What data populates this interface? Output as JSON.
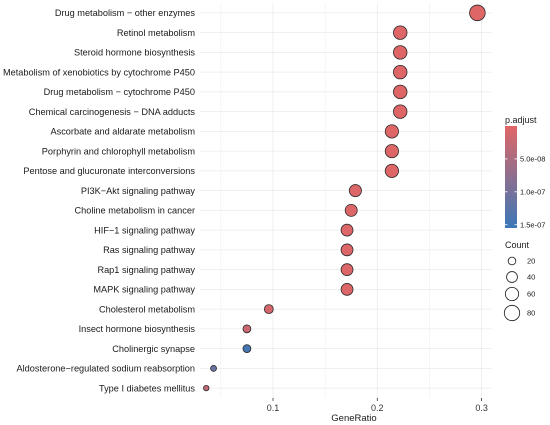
{
  "chart_data": {
    "type": "scatter",
    "title": "",
    "xlabel": "GeneRatio",
    "ylabel": "",
    "xlim": [
      0.03,
      0.31
    ],
    "x_ticks": [
      {
        "value": 0.1,
        "label": "0.1"
      },
      {
        "value": 0.2,
        "label": "0.2"
      },
      {
        "value": 0.3,
        "label": "0.3"
      }
    ],
    "grid": true,
    "legend": "right",
    "categories": [
      "Drug metabolism − other enzymes",
      "Retinol metabolism",
      "Steroid hormone biosynthesis",
      "Metabolism of xenobiotics by cytochrome P450",
      "Drug metabolism − cytochrome P450",
      "Chemical carcinogenesis − DNA adducts",
      "Ascorbate and aldarate metabolism",
      "Porphyrin and chlorophyll metabolism",
      "Pentose and glucuronate interconversions",
      "PI3K−Akt signaling pathway",
      "Choline metabolism in cancer",
      "HIF−1 signaling pathway",
      "Ras signaling pathway",
      "Rap1 signaling pathway",
      "MAPK signaling pathway",
      "Cholesterol metabolism",
      "Insect hormone biosynthesis",
      "Cholinergic synapse",
      "Aldosterone−regulated sodium reabsorption",
      "Type I diabetes mellitus"
    ],
    "points": [
      {
        "gene_ratio": 0.296,
        "count": 83,
        "p_adjust": 1e-09
      },
      {
        "gene_ratio": 0.222,
        "count": 62,
        "p_adjust": 1e-09
      },
      {
        "gene_ratio": 0.222,
        "count": 62,
        "p_adjust": 1e-09
      },
      {
        "gene_ratio": 0.222,
        "count": 62,
        "p_adjust": 1e-09
      },
      {
        "gene_ratio": 0.222,
        "count": 62,
        "p_adjust": 1e-09
      },
      {
        "gene_ratio": 0.222,
        "count": 62,
        "p_adjust": 1e-09
      },
      {
        "gene_ratio": 0.214,
        "count": 60,
        "p_adjust": 2e-09
      },
      {
        "gene_ratio": 0.214,
        "count": 60,
        "p_adjust": 2e-09
      },
      {
        "gene_ratio": 0.214,
        "count": 60,
        "p_adjust": 2e-09
      },
      {
        "gene_ratio": 0.179,
        "count": 50,
        "p_adjust": 3e-09
      },
      {
        "gene_ratio": 0.175,
        "count": 49,
        "p_adjust": 3e-09
      },
      {
        "gene_ratio": 0.171,
        "count": 48,
        "p_adjust": 4e-09
      },
      {
        "gene_ratio": 0.171,
        "count": 48,
        "p_adjust": 4e-09
      },
      {
        "gene_ratio": 0.171,
        "count": 48,
        "p_adjust": 4e-09
      },
      {
        "gene_ratio": 0.171,
        "count": 48,
        "p_adjust": 4e-09
      },
      {
        "gene_ratio": 0.096,
        "count": 27,
        "p_adjust": 1e-08
      },
      {
        "gene_ratio": 0.075,
        "count": 21,
        "p_adjust": 2e-08
      },
      {
        "gene_ratio": 0.075,
        "count": 21,
        "p_adjust": 1.45e-07
      },
      {
        "gene_ratio": 0.043,
        "count": 12,
        "p_adjust": 1.1e-07
      },
      {
        "gene_ratio": 0.036,
        "count": 10,
        "p_adjust": 3e-08
      }
    ],
    "color_legend": {
      "title": "p.adjust",
      "min": 0,
      "max": 1.55e-07,
      "colors": [
        "#e06666",
        "#3b78b8"
      ],
      "ticks": [
        {
          "value": 5e-08,
          "label": "5.0e-08"
        },
        {
          "value": 1e-07,
          "label": "1.0e-07"
        },
        {
          "value": 1.5e-07,
          "label": "1.5e-07"
        }
      ]
    },
    "size_legend": {
      "title": "Count",
      "values": [
        20,
        40,
        60,
        80
      ]
    },
    "point_fill_low": "#e06666",
    "point_fill_high": "#3b78b8",
    "point_stroke": "#2a2a2a",
    "panel_background": "#ffffff",
    "grid_color": "#ebebeb"
  }
}
